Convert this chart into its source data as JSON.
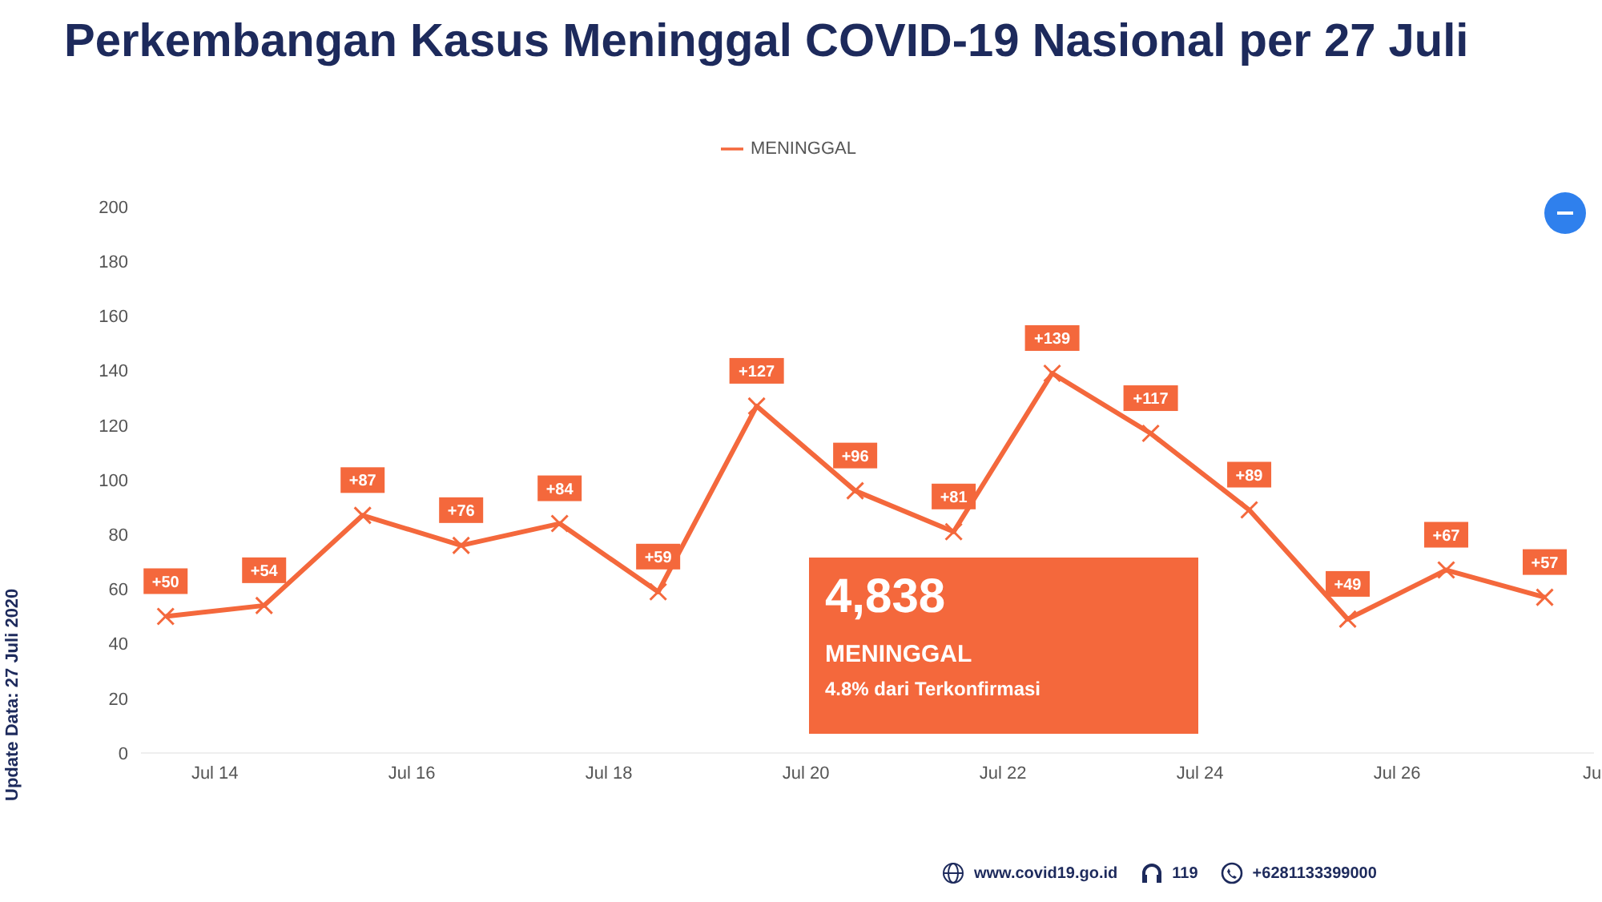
{
  "chart_data": {
    "type": "line",
    "title": "Perkembangan Kasus Meninggal COVID-19 Nasional per 27 Juli",
    "x": [
      "2020-07-13T12:00",
      "2020-07-14T12:00",
      "2020-07-15T12:00",
      "2020-07-16T12:00",
      "2020-07-17T12:00",
      "2020-07-18T12:00",
      "2020-07-19T12:00",
      "2020-07-20T12:00",
      "2020-07-21T12:00",
      "2020-07-22T12:00",
      "2020-07-23T12:00",
      "2020-07-24T12:00",
      "2020-07-25T12:00",
      "2020-07-26T12:00",
      "2020-07-27T12:00"
    ],
    "series": [
      {
        "name": "MENINGGAL",
        "color": "#f4683c",
        "values": [
          50,
          54,
          87,
          76,
          84,
          59,
          127,
          96,
          81,
          139,
          117,
          89,
          49,
          67,
          57
        ],
        "value_labels": [
          "+50",
          "+54",
          "+87",
          "+76",
          "+84",
          "+59",
          "+127",
          "+96",
          "+81",
          "+139",
          "+117",
          "+89",
          "+49",
          "+67",
          "+57"
        ]
      }
    ],
    "xlim": [
      "2020-07-13T06:00",
      "2020-07-28T00:00"
    ],
    "xticks": [
      {
        "value": "2020-07-14",
        "label": "Jul 14"
      },
      {
        "value": "2020-07-16",
        "label": "Jul 16"
      },
      {
        "value": "2020-07-18",
        "label": "Jul 18"
      },
      {
        "value": "2020-07-20",
        "label": "Jul 20"
      },
      {
        "value": "2020-07-22",
        "label": "Jul 22"
      },
      {
        "value": "2020-07-24",
        "label": "Jul 24"
      },
      {
        "value": "2020-07-26",
        "label": "Jul 26"
      },
      {
        "value": "2020-07-28",
        "label": "Jul"
      }
    ],
    "ylim": [
      0,
      200
    ],
    "yticks": [
      0,
      20,
      40,
      60,
      80,
      100,
      120,
      140,
      160,
      180,
      200
    ],
    "grid": false,
    "legend": "top",
    "marker": "cross",
    "line_style": "solid",
    "annotations": [
      "4,838",
      "MENINGGAL",
      "4.8% dari Terkonfirmasi",
      "Update Data: 27 Juli 2020",
      "www.covid19.go.id",
      "119",
      "+6281133399000"
    ]
  }
}
